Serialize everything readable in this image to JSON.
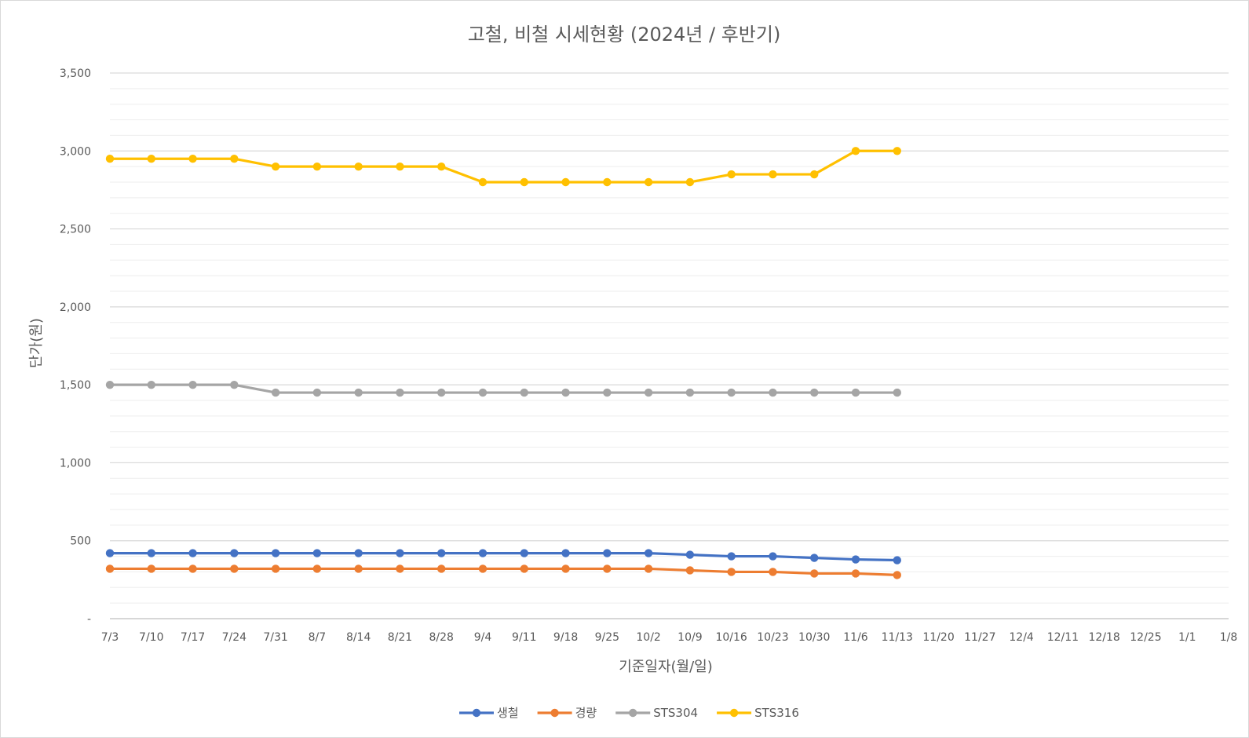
{
  "chart_data": {
    "type": "line",
    "title": "고철, 비철 시세현황 (2024년 / 후반기)",
    "xlabel": "기준일자(월/일)",
    "ylabel": "단가(원)",
    "ylim": [
      0,
      3500
    ],
    "y_major_step": 500,
    "y_minor_step": 100,
    "y_tick_labels": [
      "-",
      "500",
      "1,000",
      "1,500",
      "2,000",
      "2,500",
      "3,000",
      "3,500"
    ],
    "grid": true,
    "legend_position": "bottom",
    "categories": [
      "7/3",
      "7/10",
      "7/17",
      "7/24",
      "7/31",
      "8/7",
      "8/14",
      "8/21",
      "8/28",
      "9/4",
      "9/11",
      "9/18",
      "9/25",
      "10/2",
      "10/9",
      "10/16",
      "10/23",
      "10/30",
      "11/6",
      "11/13",
      "11/20",
      "11/27",
      "12/4",
      "12/11",
      "12/18",
      "12/25",
      "1/1",
      "1/8"
    ],
    "series": [
      {
        "name": "생철",
        "color": "#4472C4",
        "values": [
          420,
          420,
          420,
          420,
          420,
          420,
          420,
          420,
          420,
          420,
          420,
          420,
          420,
          420,
          410,
          400,
          400,
          390,
          380,
          375,
          null,
          null,
          null,
          null,
          null,
          null,
          null,
          null
        ]
      },
      {
        "name": "경량",
        "color": "#ED7D31",
        "values": [
          320,
          320,
          320,
          320,
          320,
          320,
          320,
          320,
          320,
          320,
          320,
          320,
          320,
          320,
          310,
          300,
          300,
          290,
          290,
          280,
          null,
          null,
          null,
          null,
          null,
          null,
          null,
          null
        ]
      },
      {
        "name": "STS304",
        "color": "#A5A5A5",
        "values": [
          1500,
          1500,
          1500,
          1500,
          1450,
          1450,
          1450,
          1450,
          1450,
          1450,
          1450,
          1450,
          1450,
          1450,
          1450,
          1450,
          1450,
          1450,
          1450,
          1450,
          null,
          null,
          null,
          null,
          null,
          null,
          null,
          null
        ]
      },
      {
        "name": "STS316",
        "color": "#FFC000",
        "values": [
          2950,
          2950,
          2950,
          2950,
          2900,
          2900,
          2900,
          2900,
          2900,
          2800,
          2800,
          2800,
          2800,
          2800,
          2800,
          2850,
          2850,
          2850,
          3000,
          3000,
          null,
          null,
          null,
          null,
          null,
          null,
          null,
          null
        ]
      }
    ]
  }
}
